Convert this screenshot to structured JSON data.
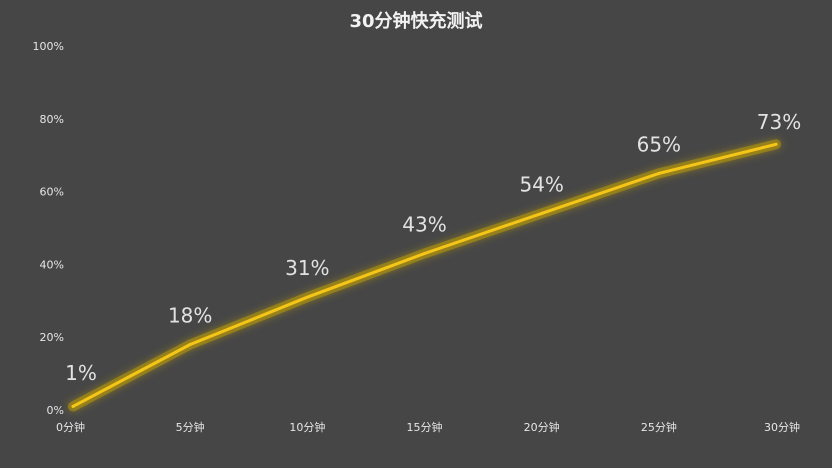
{
  "colors": {
    "background": "#464646",
    "line": "#f5c518",
    "glow": "#c8a400",
    "text": "#e6e6e6"
  },
  "chart_data": {
    "type": "line",
    "title": "30分钟快充测试",
    "xlabel": "",
    "ylabel": "",
    "categories": [
      "0分钟",
      "5分钟",
      "10分钟",
      "15分钟",
      "20分钟",
      "25分钟",
      "30分钟"
    ],
    "series": [
      {
        "values": [
          1,
          18,
          31,
          43,
          54,
          65,
          73
        ]
      }
    ],
    "data_labels": [
      "1%",
      "18%",
      "31%",
      "43%",
      "54%",
      "65%",
      "73%"
    ],
    "ylim": [
      0,
      100
    ],
    "yticks": [
      0,
      20,
      40,
      60,
      80,
      100
    ],
    "ytick_labels": [
      "0%",
      "20%",
      "40%",
      "60%",
      "80%",
      "100%"
    ],
    "grid": false,
    "legend": "none"
  }
}
